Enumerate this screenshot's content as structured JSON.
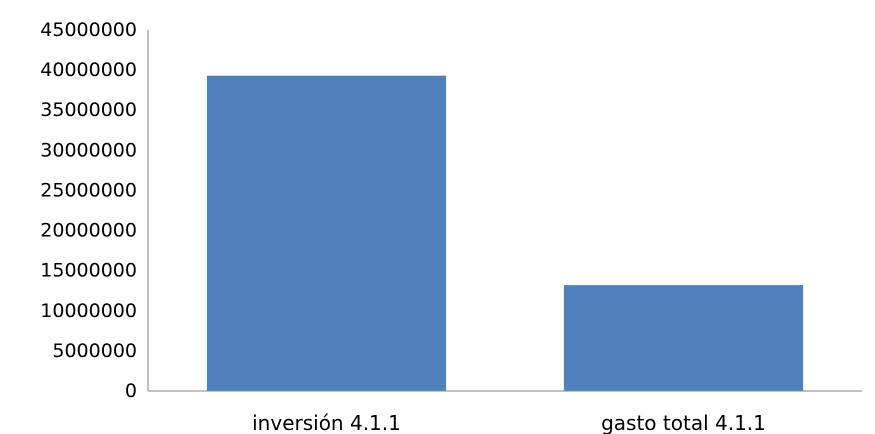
{
  "chart_data": {
    "type": "bar",
    "title": "",
    "xlabel": "",
    "ylabel": "",
    "categories": [
      "inversión 4.1.1",
      "gasto total 4.1.1"
    ],
    "values": [
      39300000,
      13200000
    ],
    "ylim": [
      0,
      45000000
    ],
    "yticks": [
      0,
      5000000,
      10000000,
      15000000,
      20000000,
      25000000,
      30000000,
      35000000,
      40000000,
      45000000
    ],
    "ytick_labels": [
      "0",
      "5000000",
      "10000000",
      "15000000",
      "20000000",
      "25000000",
      "30000000",
      "35000000",
      "40000000",
      "45000000"
    ],
    "grid": false,
    "legend": "none",
    "colors": {
      "bar": "#4F81BD",
      "axis": "#868686",
      "text": "#000000"
    }
  }
}
